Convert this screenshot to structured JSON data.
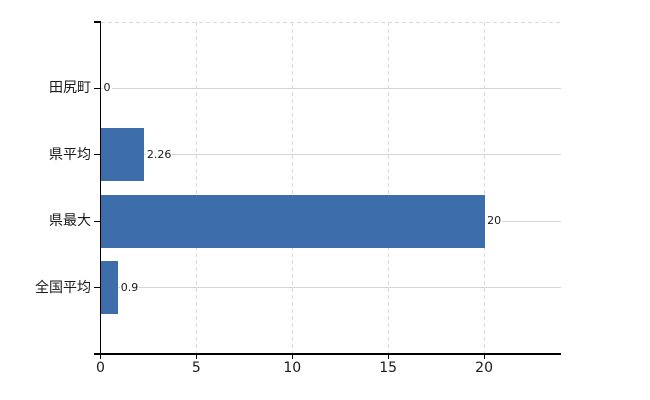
{
  "chart_data": {
    "type": "bar",
    "orientation": "horizontal",
    "title": "",
    "xlabel": "",
    "ylabel": "",
    "categories": [
      "田尻町",
      "県平均",
      "県最大",
      "全国平均"
    ],
    "values": [
      0,
      2.26,
      20,
      0.9
    ],
    "value_labels": [
      "0",
      "2.26",
      "20",
      "0.9"
    ],
    "x_ticks": [
      {
        "value": 0,
        "label": "0"
      },
      {
        "value": 5,
        "label": "5"
      },
      {
        "value": 10,
        "label": "10"
      },
      {
        "value": 15,
        "label": "15"
      },
      {
        "value": 20,
        "label": "20"
      }
    ],
    "xlim": [
      0,
      24
    ],
    "legend_position": "none",
    "grid": {
      "vertical_gridlines": "dashed, at x ticks 5/10/15/20",
      "horizontal_gridlines": "solid, at each category center",
      "plot_top_border": "dashed"
    },
    "colors": {
      "bar": "#3d6dab",
      "axis": "#000000",
      "grid_dashed": "#d9d9d9",
      "grid_horizontal": "#cfd9cf",
      "text": "#1a1a1a",
      "background": "#ffffff"
    }
  }
}
